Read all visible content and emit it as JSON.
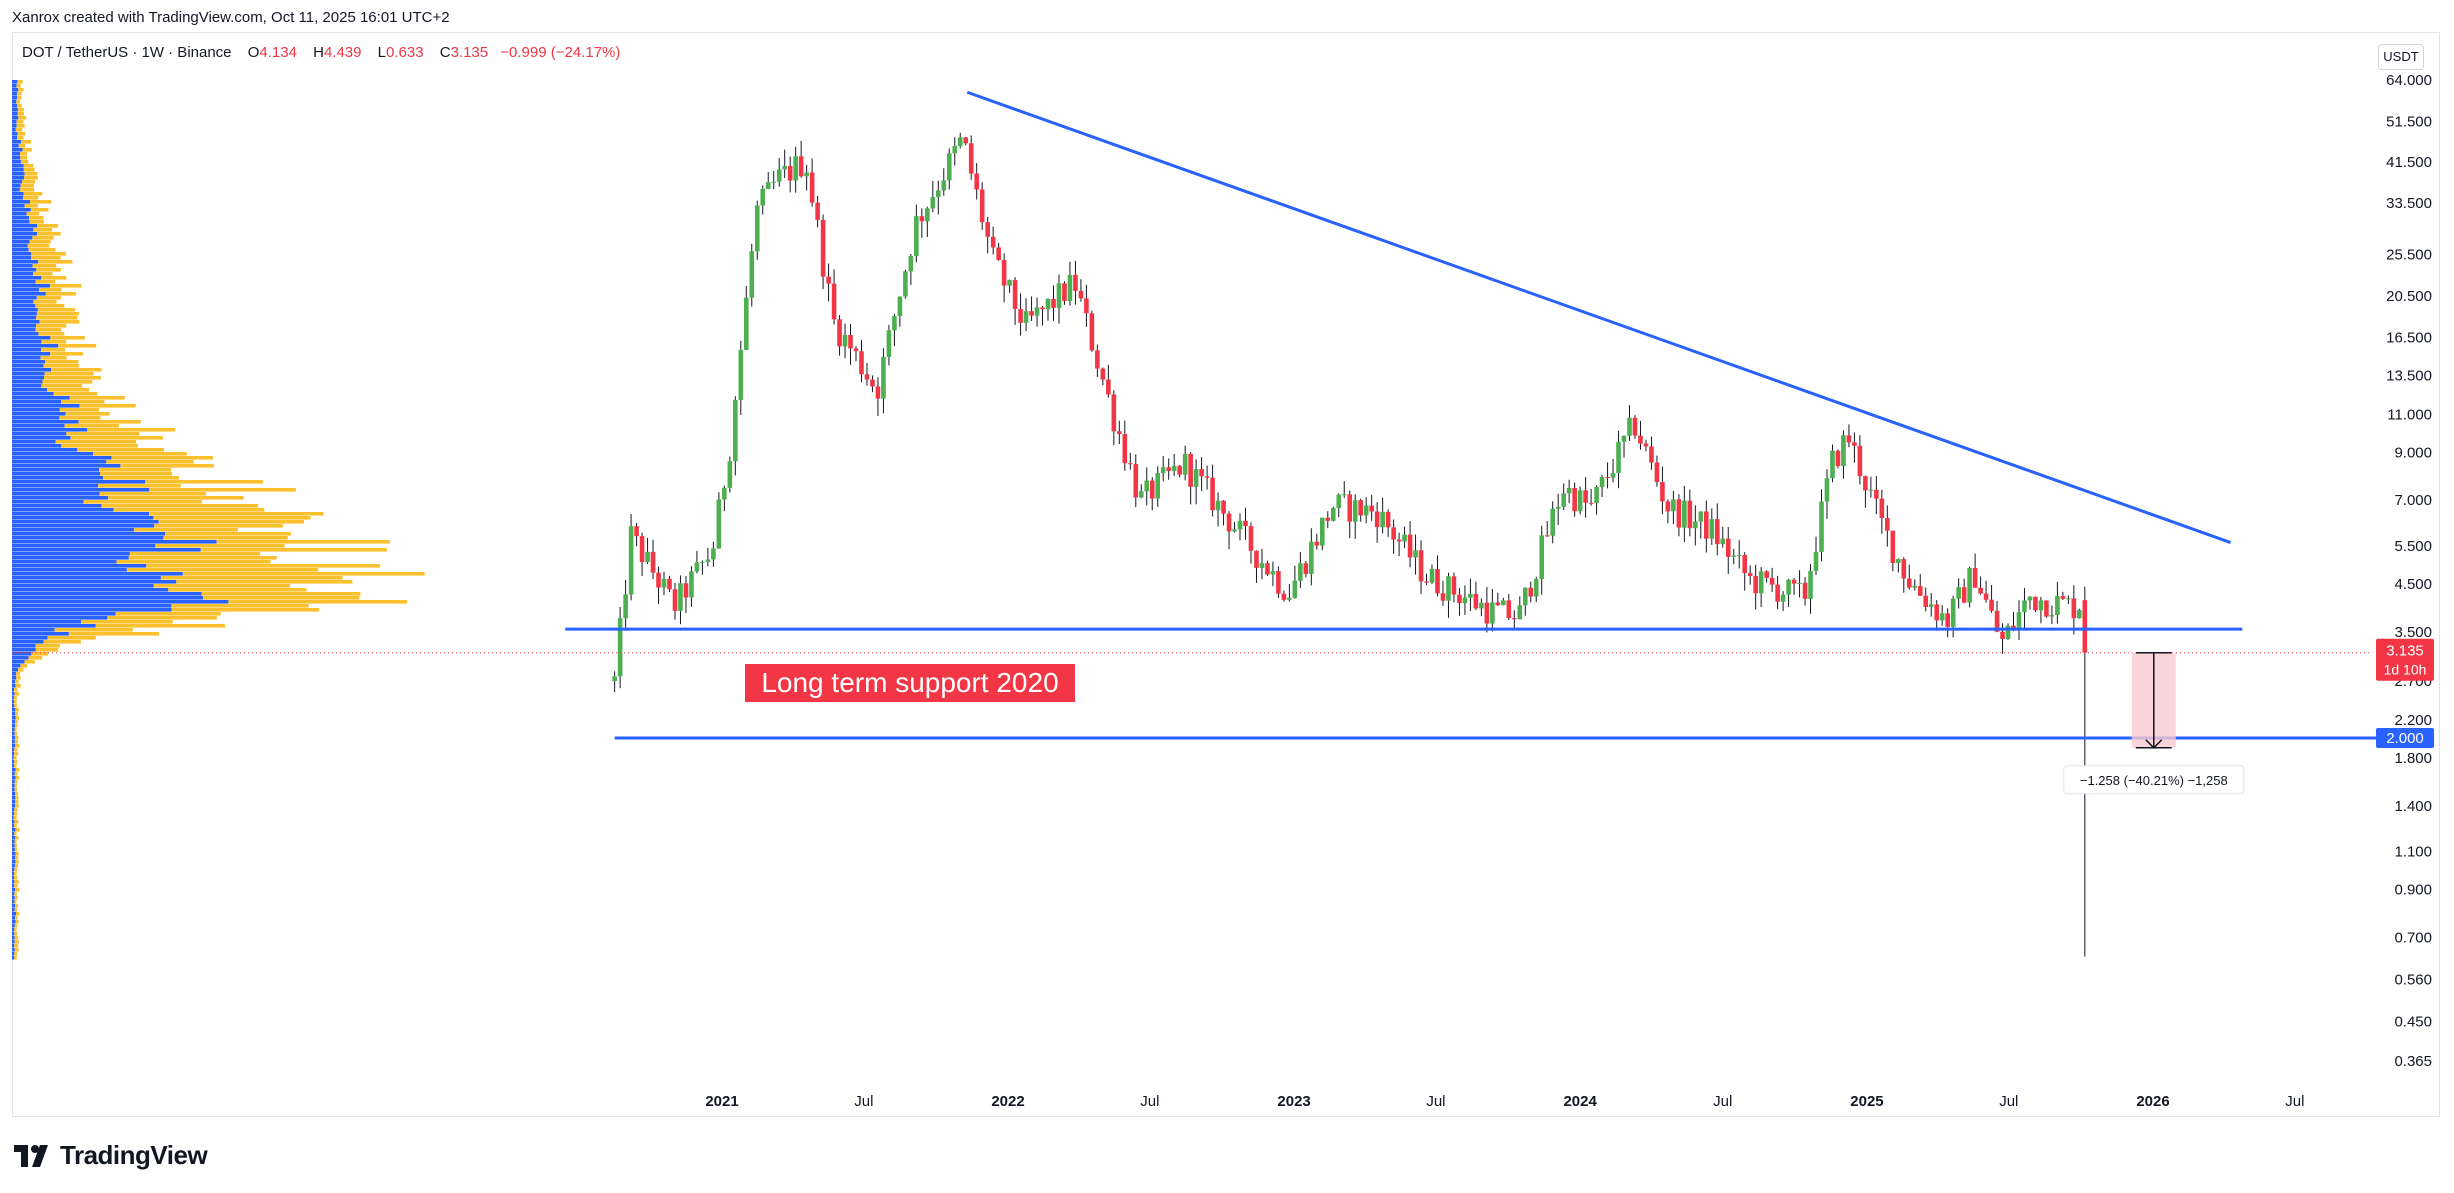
{
  "header": {
    "attribution": "Xanrox created with TradingView.com, Oct 11, 2025 16:01 UTC+2"
  },
  "legend": {
    "symbol": "DOT / TetherUS · 1W · Binance",
    "o_label": "O",
    "o_value": "4.134",
    "h_label": "H",
    "h_value": "4.439",
    "l_label": "L",
    "l_value": "0.633",
    "c_label": "C",
    "c_value": "3.135",
    "change": "−0.999 (−24.17%)"
  },
  "currency": "USDT",
  "brand": {
    "name": "TradingView"
  },
  "colors": {
    "up": "#22ab94",
    "up_fill": "#4caf50",
    "down": "#f23645",
    "trendline": "#2962ff",
    "vp_blue": "#2962ff",
    "vp_orange": "#fbc02d",
    "measure_fill": "#f7c9ce"
  },
  "chart_data": {
    "type": "candlestick",
    "scale": "log",
    "ylim": [
      0.33,
      72
    ],
    "y_ticks": [
      "64.000",
      "51.500",
      "41.500",
      "33.500",
      "25.500",
      "20.500",
      "16.500",
      "13.500",
      "11.000",
      "9.000",
      "7.000",
      "5.500",
      "4.500",
      "3.500",
      "2.700",
      "2.200",
      "1.800",
      "1.400",
      "1.100",
      "0.900",
      "0.700",
      "0.560",
      "0.450",
      "0.365"
    ],
    "x_ticks": [
      {
        "label": "2021",
        "date": "2021-01-01"
      },
      {
        "label": "Jul",
        "date": "2021-07-01"
      },
      {
        "label": "2022",
        "date": "2022-01-01"
      },
      {
        "label": "Jul",
        "date": "2022-07-01"
      },
      {
        "label": "2023",
        "date": "2023-01-01"
      },
      {
        "label": "Jul",
        "date": "2023-07-01"
      },
      {
        "label": "2024",
        "date": "2024-01-01"
      },
      {
        "label": "Jul",
        "date": "2024-07-01"
      },
      {
        "label": "2025",
        "date": "2025-01-01"
      },
      {
        "label": "Jul",
        "date": "2025-07-01"
      },
      {
        "label": "2026",
        "date": "2026-01-01"
      },
      {
        "label": "Jul",
        "date": "2026-07-01"
      }
    ],
    "xlim": [
      "2019-12-01",
      "2026-11-15"
    ],
    "key_points": [
      {
        "date": "2020-08-17",
        "price": 2.7
      },
      {
        "date": "2020-09-07",
        "price": 5.8
      },
      {
        "date": "2020-11-01",
        "price": 4.0
      },
      {
        "date": "2020-12-20",
        "price": 5.4
      },
      {
        "date": "2021-01-10",
        "price": 9.0
      },
      {
        "date": "2021-02-14",
        "price": 32.0
      },
      {
        "date": "2021-03-14",
        "price": 38.0
      },
      {
        "date": "2021-04-18",
        "price": 42.0
      },
      {
        "date": "2021-05-23",
        "price": 18.0
      },
      {
        "date": "2021-07-18",
        "price": 12.5
      },
      {
        "date": "2021-09-05",
        "price": 30.0
      },
      {
        "date": "2021-11-04",
        "price": 47.0
      },
      {
        "date": "2021-12-12",
        "price": 25.0
      },
      {
        "date": "2022-01-23",
        "price": 17.5
      },
      {
        "date": "2022-03-27",
        "price": 22.0
      },
      {
        "date": "2022-05-15",
        "price": 11.0
      },
      {
        "date": "2022-06-19",
        "price": 7.0
      },
      {
        "date": "2022-08-14",
        "price": 8.5
      },
      {
        "date": "2022-11-13",
        "price": 5.3
      },
      {
        "date": "2022-12-25",
        "price": 4.3
      },
      {
        "date": "2023-02-19",
        "price": 6.8
      },
      {
        "date": "2023-04-16",
        "price": 6.6
      },
      {
        "date": "2023-06-18",
        "price": 4.7
      },
      {
        "date": "2023-09-10",
        "price": 3.9
      },
      {
        "date": "2023-10-15",
        "price": 3.8
      },
      {
        "date": "2023-12-10",
        "price": 7.5
      },
      {
        "date": "2024-01-14",
        "price": 6.7
      },
      {
        "date": "2024-03-10",
        "price": 10.5
      },
      {
        "date": "2024-04-21",
        "price": 6.8
      },
      {
        "date": "2024-06-16",
        "price": 6.0
      },
      {
        "date": "2024-08-04",
        "price": 4.6
      },
      {
        "date": "2024-10-13",
        "price": 4.2
      },
      {
        "date": "2024-11-17",
        "price": 8.5
      },
      {
        "date": "2024-12-08",
        "price": 9.8
      },
      {
        "date": "2025-01-19",
        "price": 6.2
      },
      {
        "date": "2025-02-23",
        "price": 4.6
      },
      {
        "date": "2025-04-13",
        "price": 3.7
      },
      {
        "date": "2025-05-18",
        "price": 4.8
      },
      {
        "date": "2025-06-22",
        "price": 3.3
      },
      {
        "date": "2025-07-27",
        "price": 4.2
      },
      {
        "date": "2025-09-21",
        "price": 4.0
      },
      {
        "date": "2025-10-05",
        "price": 4.134
      }
    ],
    "last_candle": {
      "date": "2025-10-06",
      "open": 4.134,
      "high": 4.439,
      "low": 0.633,
      "close": 3.135
    },
    "price_label": {
      "value": "3.135",
      "countdown": "1d 10h"
    },
    "level_label": "2.000",
    "annotations": {
      "support_text": "Long term support 2020",
      "measure_text": "−1.258 (−40.21%) −1,258",
      "descending_trendline": {
        "from": {
          "date": "2021-11-10",
          "price": 60.0
        },
        "to": {
          "date": "2026-04-10",
          "price": 5.6
        }
      },
      "support_line": {
        "from_date": "2020-06-15",
        "to_date": "2026-04-25",
        "price": 3.55
      },
      "level_2020": {
        "from_date": "2020-08-17",
        "price": 2.0
      },
      "measure": {
        "date": "2026-01-02",
        "from": 3.135,
        "to": 1.9
      }
    },
    "volume_profile": {
      "y_from": 64.0,
      "y_to": 0.63
    }
  }
}
